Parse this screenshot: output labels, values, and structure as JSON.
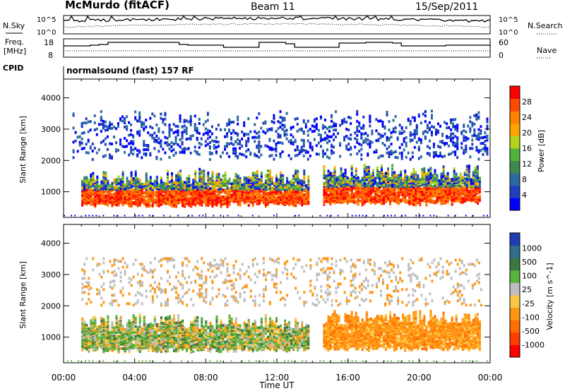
{
  "header": {
    "station": "McMurdo (fitACF)",
    "beam": "Beam 11",
    "date": "15/Sep/2011"
  },
  "noise_panel": {
    "left_label": "N.Sky",
    "left_ticks": [
      "10^5",
      "10^0"
    ],
    "right_label": "N.Search",
    "right_ticks": [
      "10^5",
      "10^0"
    ]
  },
  "freq_panel": {
    "left_label_line1": "Freq.",
    "left_label_line2": "[MHz]",
    "left_ticks": [
      "18",
      "8"
    ],
    "right_label": "Nave",
    "right_ticks": [
      "60",
      "0"
    ]
  },
  "cpid": {
    "label": "CPID",
    "program": "normalsound (fast) 157 RF"
  },
  "colors": {
    "power_scale": [
      "#0000ff",
      "#1f3fbf",
      "#2a6aa0",
      "#3c8a50",
      "#50b43c",
      "#b4d21e",
      "#ffa500",
      "#ff8200",
      "#ff4b00",
      "#ff0000"
    ],
    "velocity_scale": [
      "#1e3cb4",
      "#2e6e8c",
      "#3c7840",
      "#5ab43c",
      "#bebebe",
      "#fac846",
      "#ff9614",
      "#ff6e00",
      "#ff3c00",
      "#ff0000"
    ]
  },
  "chart_data": [
    {
      "type": "heatmap",
      "panel": "power",
      "ylabel": "Slant Range [km]",
      "yticks": [
        1000,
        2000,
        3000,
        4000
      ],
      "ylim": [
        180,
        4600
      ],
      "colorbar_label": "Power [dB]",
      "colorbar_ticks": [
        4,
        8,
        12,
        16,
        20,
        24,
        28
      ],
      "colorbar_range": [
        0,
        32
      ],
      "scatter_bands": [
        {
          "t_start": 1.0,
          "t_end": 13.8,
          "r_min": 500,
          "r_max": 1700,
          "level": "high"
        },
        {
          "t_start": 14.6,
          "t_end": 23.4,
          "r_min": 550,
          "r_max": 1850,
          "level": "high"
        },
        {
          "t_start": 0.5,
          "t_end": 23.8,
          "r_min": 2000,
          "r_max": 3600,
          "level": "low"
        }
      ]
    },
    {
      "type": "heatmap",
      "panel": "velocity",
      "ylabel": "Slant Range [km]",
      "yticks": [
        1000,
        2000,
        3000,
        4000
      ],
      "ylim": [
        180,
        4600
      ],
      "colorbar_label": "Velocity [m s^-1]",
      "colorbar_ticks": [
        1000,
        500,
        100,
        25,
        -25,
        -100,
        -500,
        -1000
      ],
      "scatter_bands": [
        {
          "t_start": 1.0,
          "t_end": 13.8,
          "r_min": 500,
          "r_max": 1700,
          "level": "mixed-green"
        },
        {
          "t_start": 14.6,
          "t_end": 23.4,
          "r_min": 550,
          "r_max": 1850,
          "level": "orange"
        }
      ]
    }
  ],
  "time_axis": {
    "label": "Time UT",
    "ticks": [
      "00:00",
      "04:00",
      "08:00",
      "12:00",
      "16:00",
      "20:00",
      "00:00"
    ]
  }
}
